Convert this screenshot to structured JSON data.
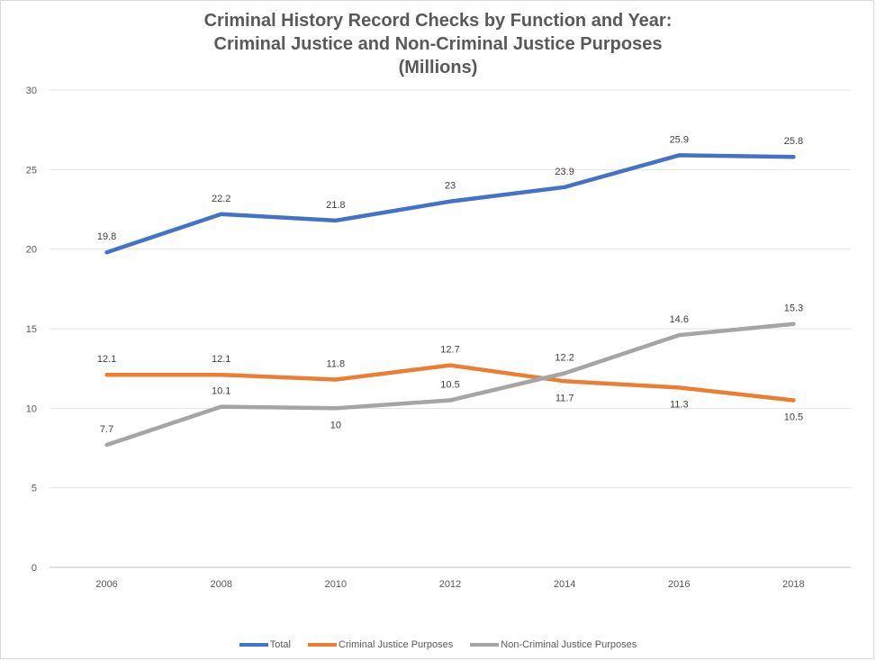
{
  "chart_data": {
    "type": "line",
    "title_lines": [
      "Criminal History Record Checks by Function and Year:",
      "Criminal Justice and Non-Criminal Justice Purposes",
      "(Millions)"
    ],
    "categories": [
      "2006",
      "2008",
      "2010",
      "2012",
      "2014",
      "2016",
      "2018"
    ],
    "ylim": [
      0,
      30
    ],
    "yticks": [
      0,
      5,
      10,
      15,
      20,
      25,
      30
    ],
    "grid": true,
    "legend_position": "bottom",
    "series": [
      {
        "name": "Total",
        "color": "#4472c4",
        "values": [
          19.8,
          22.2,
          21.8,
          23,
          23.9,
          25.9,
          25.8
        ],
        "labels": [
          "19.8",
          "22.2",
          "21.8",
          "23",
          "23.9",
          "25.9",
          "25.8"
        ],
        "label_pos": [
          "above",
          "above",
          "above",
          "above",
          "above",
          "above",
          "above"
        ]
      },
      {
        "name": "Criminal Justice Purposes",
        "color": "#ed7d31",
        "values": [
          12.1,
          12.1,
          11.8,
          12.7,
          11.7,
          11.3,
          10.5
        ],
        "labels": [
          "12.1",
          "12.1",
          "11.8",
          "12.7",
          "11.7",
          "11.3",
          "10.5"
        ],
        "label_pos": [
          "above",
          "above",
          "above",
          "above",
          "below",
          "below",
          "below"
        ]
      },
      {
        "name": "Non-Criminal Justice Purposes",
        "color": "#a5a5a5",
        "values": [
          7.7,
          10.1,
          10,
          10.5,
          12.2,
          14.6,
          15.3
        ],
        "labels": [
          "7.7",
          "10.1",
          "10",
          "10.5",
          "12.2",
          "14.6",
          "15.3"
        ],
        "label_pos": [
          "above",
          "above",
          "below",
          "above",
          "above",
          "above",
          "above"
        ]
      }
    ]
  }
}
